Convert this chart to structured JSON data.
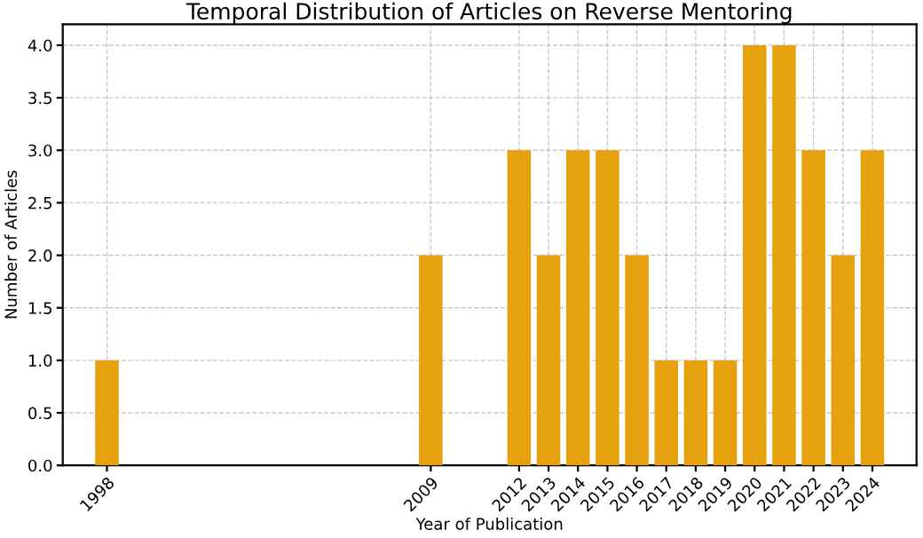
{
  "chart_data": {
    "type": "bar",
    "title": "Temporal Distribution of Articles on Reverse Mentoring",
    "xlabel": "Year of Publication",
    "ylabel": "Number of Articles",
    "x": [
      1998,
      2009,
      2012,
      2013,
      2014,
      2015,
      2016,
      2017,
      2018,
      2019,
      2020,
      2021,
      2022,
      2023,
      2024
    ],
    "values": [
      1,
      2,
      3,
      2,
      3,
      3,
      2,
      1,
      1,
      1,
      4,
      4,
      3,
      2,
      3
    ],
    "color": "#e6a10e",
    "xlim": [
      1996.5,
      2025.5
    ],
    "xticks": [
      1998,
      2009,
      2012,
      2013,
      2014,
      2015,
      2016,
      2017,
      2018,
      2019,
      2020,
      2021,
      2022,
      2023,
      2024
    ],
    "ylim": [
      0,
      4.2
    ],
    "yticks": [
      {
        "value": 0,
        "label": "0.0"
      },
      {
        "value": 0.5,
        "label": "0.5"
      },
      {
        "value": 1,
        "label": "1.0"
      },
      {
        "value": 1.5,
        "label": "1.5"
      },
      {
        "value": 2,
        "label": "2.0"
      },
      {
        "value": 2.5,
        "label": "2.5"
      },
      {
        "value": 3,
        "label": "3.0"
      },
      {
        "value": 3.5,
        "label": "3.5"
      },
      {
        "value": 4,
        "label": "4.0"
      }
    ],
    "grid": true,
    "line_style": "dashed"
  }
}
